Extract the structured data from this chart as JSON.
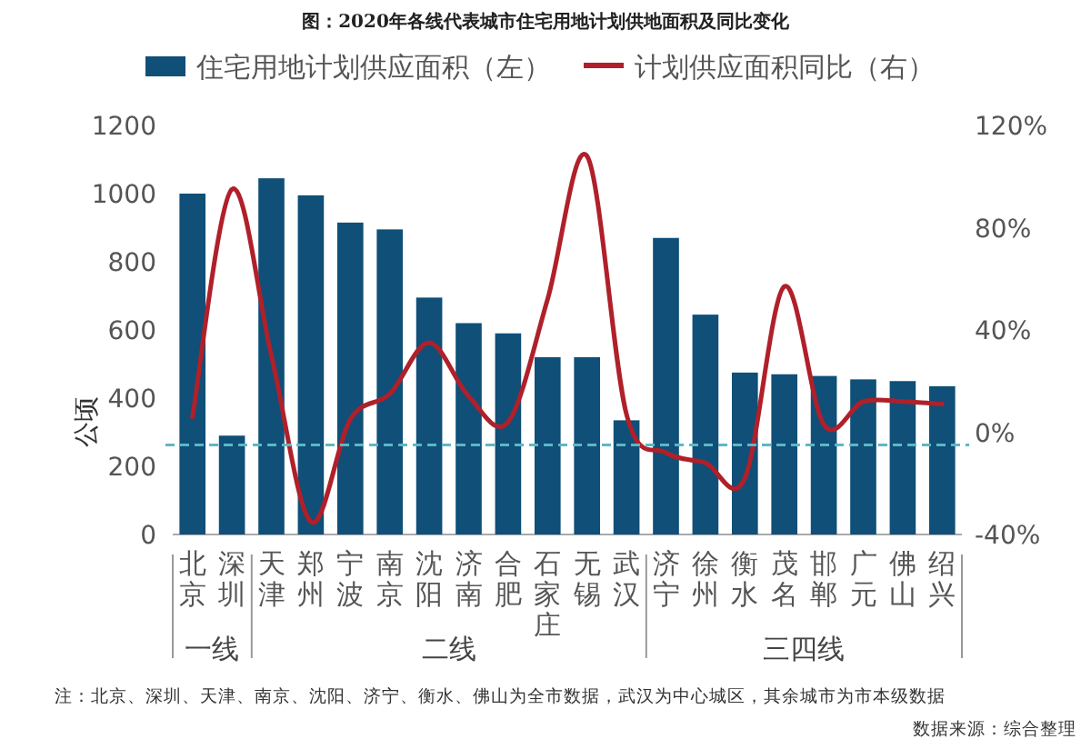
{
  "chart_data": {
    "type": "bar",
    "title": "图：2020年各线代表城市住宅用地计划供地面积及同比变化",
    "ylabel": "公顷",
    "categories": [
      "北京",
      "深圳",
      "天津",
      "郑州",
      "宁波",
      "南京",
      "沈阳",
      "济南",
      "合肥",
      "石家庄",
      "无锡",
      "武汉",
      "济宁",
      "徐州",
      "衡水",
      "茂名",
      "邯郸",
      "广元",
      "佛山",
      "绍兴"
    ],
    "series": [
      {
        "name": "住宅用地计划供应面积（左）",
        "color": "#0f4f78",
        "values": [
          1000,
          290,
          1045,
          995,
          915,
          895,
          695,
          620,
          590,
          520,
          520,
          335,
          870,
          645,
          475,
          470,
          465,
          455,
          450,
          435
        ]
      },
      {
        "name": "计划供应面积同比（右）",
        "type": "line",
        "axis": "y2",
        "color": "#b0202a",
        "values": [
          6,
          95,
          30,
          -35,
          5,
          15,
          35,
          14,
          4,
          52,
          108,
          7,
          -8,
          -12,
          -18,
          57,
          3,
          12,
          12,
          11
        ]
      }
    ],
    "ylim": [
      0,
      1200
    ],
    "yticks": [
      0,
      200,
      400,
      600,
      800,
      1000,
      1200
    ],
    "y2lim": [
      -40,
      120
    ],
    "y2ticks": [
      {
        "value": -40,
        "label": "-40%"
      },
      {
        "value": 0,
        "label": "0%"
      },
      {
        "value": 40,
        "label": "40%"
      },
      {
        "value": 80,
        "label": "80%"
      },
      {
        "value": 120,
        "label": "120%"
      }
    ],
    "ref_lines": [
      {
        "axis": "y2",
        "value": -5,
        "color": "#5bb8c4",
        "line_style": "dashed"
      }
    ],
    "legend": "top",
    "grid": false,
    "annotations": [
      "一线",
      "二线",
      "三四线",
      "注：北京、深圳、天津、南京、沈阳、济宁、衡水、佛山为全市数据，武汉为中心城区，其余城市为市本级数据",
      "数据来源：综合整理"
    ]
  }
}
